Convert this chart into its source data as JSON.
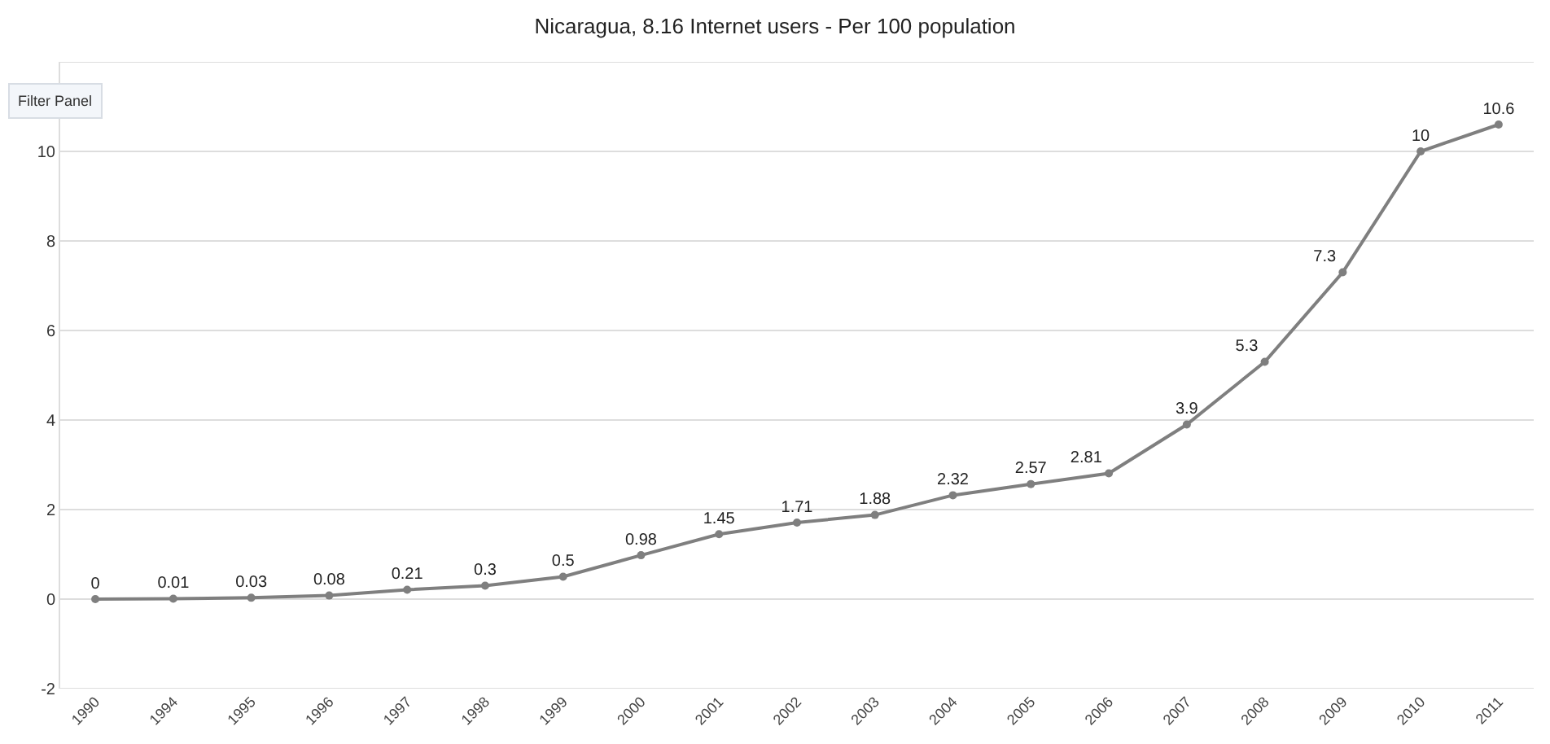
{
  "chart_data": {
    "type": "line",
    "title": "Nicaragua, 8.16 Internet users - Per 100 population",
    "categories": [
      "1990",
      "1994",
      "1995",
      "1996",
      "1997",
      "1998",
      "1999",
      "2000",
      "2001",
      "2002",
      "2003",
      "2004",
      "2005",
      "2006",
      "2007",
      "2008",
      "2009",
      "2010",
      "2011"
    ],
    "series": [
      {
        "color": "#7f7f7f",
        "values": [
          0,
          0.01,
          0.03,
          0.08,
          0.21,
          0.3,
          0.5,
          0.98,
          1.45,
          1.71,
          1.88,
          2.32,
          2.57,
          2.81,
          3.9,
          5.3,
          7.3,
          10,
          10.6
        ]
      }
    ],
    "ylim": [
      -2,
      12
    ],
    "yticks": [
      -2,
      0,
      2,
      4,
      6,
      8,
      10,
      {
        "value": 12,
        "label": null
      }
    ],
    "grid": "y",
    "legend": false,
    "marker": "circle",
    "line_style": "solid",
    "data_labels": true,
    "annotations": [
      "Filter Panel"
    ]
  }
}
